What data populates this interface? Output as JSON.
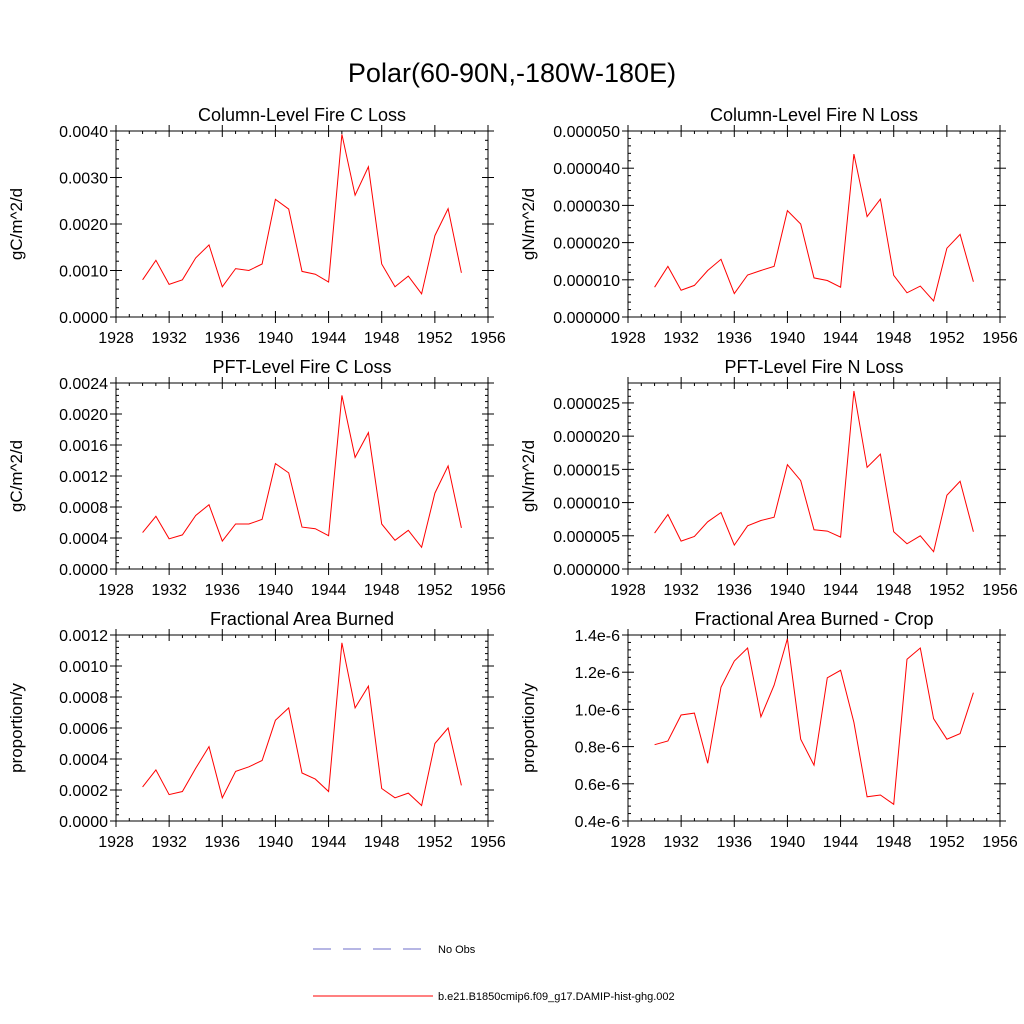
{
  "figure": {
    "title": "Polar(60-90N,-180W-180E)"
  },
  "legend": {
    "items": [
      {
        "label": "No Obs",
        "color": "#6e6ec8",
        "style": "dashed"
      },
      {
        "label": "b.e21.B1850cmip6.f09_g17.DAMIP-hist-ghg.002",
        "color": "#ff0000",
        "style": "solid"
      }
    ]
  },
  "chart_data": [
    {
      "type": "line",
      "title": "Column-Level Fire C Loss",
      "xlabel": "",
      "ylabel": "gC/m^2/d",
      "xlim": [
        1928,
        1956
      ],
      "ylim": [
        0,
        0.004
      ],
      "xticks": [
        1928,
        1932,
        1936,
        1940,
        1944,
        1948,
        1952,
        1956
      ],
      "xtick_labels": [
        "1928",
        "1932",
        "1936",
        "1940",
        "1944",
        "1948",
        "1952",
        "1956"
      ],
      "yticks": [
        0,
        0.001,
        0.002,
        0.003,
        0.004
      ],
      "ytick_labels": [
        "0.0000",
        "0.0010",
        "0.0020",
        "0.0030",
        "0.0040"
      ],
      "x": [
        1930,
        1931,
        1932,
        1933,
        1934,
        1935,
        1936,
        1937,
        1938,
        1939,
        1940,
        1941,
        1942,
        1943,
        1944,
        1945,
        1946,
        1947,
        1948,
        1949,
        1950,
        1951,
        1952,
        1953,
        1954
      ],
      "series": [
        {
          "color": "#ff0000",
          "values": [
            0.0008,
            0.00122,
            0.0007,
            0.0008,
            0.00127,
            0.00155,
            0.00065,
            0.00104,
            0.001,
            0.00114,
            0.00253,
            0.00232,
            0.00098,
            0.00092,
            0.00075,
            0.00393,
            0.00262,
            0.00323,
            0.00114,
            0.00065,
            0.00088,
            0.0005,
            0.00175,
            0.00233,
            0.00095
          ]
        }
      ]
    },
    {
      "type": "line",
      "title": "Column-Level Fire N Loss",
      "xlabel": "",
      "ylabel": "gN/m^2/d",
      "xlim": [
        1928,
        1956
      ],
      "ylim": [
        0,
        5e-05
      ],
      "xticks": [
        1928,
        1932,
        1936,
        1940,
        1944,
        1948,
        1952,
        1956
      ],
      "xtick_labels": [
        "1928",
        "1932",
        "1936",
        "1940",
        "1944",
        "1948",
        "1952",
        "1956"
      ],
      "yticks": [
        0,
        1e-05,
        2e-05,
        3e-05,
        4e-05,
        5e-05
      ],
      "ytick_labels": [
        "0.000000",
        "0.000010",
        "0.000020",
        "0.000030",
        "0.000040",
        "0.000050"
      ],
      "x": [
        1930,
        1931,
        1932,
        1933,
        1934,
        1935,
        1936,
        1937,
        1938,
        1939,
        1940,
        1941,
        1942,
        1943,
        1944,
        1945,
        1946,
        1947,
        1948,
        1949,
        1950,
        1951,
        1952,
        1953,
        1954
      ],
      "series": [
        {
          "color": "#ff0000",
          "values": [
            8e-06,
            1.36e-05,
            7.2e-06,
            8.5e-06,
            1.25e-05,
            1.55e-05,
            6.3e-06,
            1.13e-05,
            1.25e-05,
            1.36e-05,
            2.86e-05,
            2.5e-05,
            1.05e-05,
            9.8e-06,
            8e-06,
            4.38e-05,
            2.7e-05,
            3.17e-05,
            1.12e-05,
            6.5e-06,
            8.3e-06,
            4.3e-06,
            1.85e-05,
            2.22e-05,
            9.5e-06
          ]
        }
      ]
    },
    {
      "type": "line",
      "title": "PFT-Level Fire C Loss",
      "xlabel": "",
      "ylabel": "gC/m^2/d",
      "xlim": [
        1928,
        1956
      ],
      "ylim": [
        0,
        0.0024
      ],
      "xticks": [
        1928,
        1932,
        1936,
        1940,
        1944,
        1948,
        1952,
        1956
      ],
      "xtick_labels": [
        "1928",
        "1932",
        "1936",
        "1940",
        "1944",
        "1948",
        "1952",
        "1956"
      ],
      "yticks": [
        0,
        0.0004,
        0.0008,
        0.0012,
        0.0016,
        0.002,
        0.0024
      ],
      "ytick_labels": [
        "0.0000",
        "0.0004",
        "0.0008",
        "0.0012",
        "0.0016",
        "0.0020",
        "0.0024"
      ],
      "x": [
        1930,
        1931,
        1932,
        1933,
        1934,
        1935,
        1936,
        1937,
        1938,
        1939,
        1940,
        1941,
        1942,
        1943,
        1944,
        1945,
        1946,
        1947,
        1948,
        1949,
        1950,
        1951,
        1952,
        1953,
        1954
      ],
      "series": [
        {
          "color": "#ff0000",
          "values": [
            0.00047,
            0.00068,
            0.00039,
            0.00044,
            0.00069,
            0.00083,
            0.00036,
            0.00058,
            0.00058,
            0.00064,
            0.00136,
            0.00124,
            0.00054,
            0.00052,
            0.00043,
            0.00224,
            0.00144,
            0.00176,
            0.00058,
            0.00037,
            0.0005,
            0.00028,
            0.00098,
            0.00133,
            0.00053
          ]
        }
      ]
    },
    {
      "type": "line",
      "title": "PFT-Level Fire N Loss",
      "xlabel": "",
      "ylabel": "gN/m^2/d",
      "xlim": [
        1928,
        1956
      ],
      "ylim": [
        0,
        2.8e-05
      ],
      "xticks": [
        1928,
        1932,
        1936,
        1940,
        1944,
        1948,
        1952,
        1956
      ],
      "xtick_labels": [
        "1928",
        "1932",
        "1936",
        "1940",
        "1944",
        "1948",
        "1952",
        "1956"
      ],
      "yticks": [
        0,
        5e-06,
        1e-05,
        1.5e-05,
        2e-05,
        2.5e-05
      ],
      "ytick_labels": [
        "0.000000",
        "0.000005",
        "0.000010",
        "0.000015",
        "0.000020",
        "0.000025"
      ],
      "x": [
        1930,
        1931,
        1932,
        1933,
        1934,
        1935,
        1936,
        1937,
        1938,
        1939,
        1940,
        1941,
        1942,
        1943,
        1944,
        1945,
        1946,
        1947,
        1948,
        1949,
        1950,
        1951,
        1952,
        1953,
        1954
      ],
      "series": [
        {
          "color": "#ff0000",
          "values": [
            5.4e-06,
            8.2e-06,
            4.2e-06,
            4.9e-06,
            7.1e-06,
            8.5e-06,
            3.6e-06,
            6.5e-06,
            7.3e-06,
            7.8e-06,
            1.57e-05,
            1.33e-05,
            5.9e-06,
            5.7e-06,
            4.8e-06,
            2.68e-05,
            1.53e-05,
            1.73e-05,
            5.6e-06,
            3.8e-06,
            5e-06,
            2.6e-06,
            1.11e-05,
            1.32e-05,
            5.6e-06
          ]
        }
      ]
    },
    {
      "type": "line",
      "title": "Fractional Area Burned",
      "xlabel": "",
      "ylabel": "proportion/y",
      "xlim": [
        1928,
        1956
      ],
      "ylim": [
        0,
        0.0012
      ],
      "xticks": [
        1928,
        1932,
        1936,
        1940,
        1944,
        1948,
        1952,
        1956
      ],
      "xtick_labels": [
        "1928",
        "1932",
        "1936",
        "1940",
        "1944",
        "1948",
        "1952",
        "1956"
      ],
      "yticks": [
        0,
        0.0002,
        0.0004,
        0.0006,
        0.0008,
        0.001,
        0.0012
      ],
      "ytick_labels": [
        "0.0000",
        "0.0002",
        "0.0004",
        "0.0006",
        "0.0008",
        "0.0010",
        "0.0012"
      ],
      "x": [
        1930,
        1931,
        1932,
        1933,
        1934,
        1935,
        1936,
        1937,
        1938,
        1939,
        1940,
        1941,
        1942,
        1943,
        1944,
        1945,
        1946,
        1947,
        1948,
        1949,
        1950,
        1951,
        1952,
        1953,
        1954
      ],
      "series": [
        {
          "color": "#ff0000",
          "values": [
            0.00022,
            0.00033,
            0.00017,
            0.00019,
            0.00034,
            0.00048,
            0.00015,
            0.00032,
            0.00035,
            0.00039,
            0.00065,
            0.00073,
            0.00031,
            0.00027,
            0.00019,
            0.00115,
            0.00073,
            0.00087,
            0.00021,
            0.00015,
            0.00018,
            0.0001,
            0.0005,
            0.0006,
            0.00023
          ]
        }
      ]
    },
    {
      "type": "line",
      "title": "Fractional Area Burned - Crop",
      "xlabel": "",
      "ylabel": "proportion/y",
      "xlim": [
        1928,
        1956
      ],
      "ylim": [
        4e-07,
        1.4e-06
      ],
      "xticks": [
        1928,
        1932,
        1936,
        1940,
        1944,
        1948,
        1952,
        1956
      ],
      "xtick_labels": [
        "1928",
        "1932",
        "1936",
        "1940",
        "1944",
        "1948",
        "1952",
        "1956"
      ],
      "yticks": [
        4e-07,
        6e-07,
        8e-07,
        1e-06,
        1.2e-06,
        1.4e-06
      ],
      "ytick_labels": [
        "0.4e-6",
        "0.6e-6",
        "0.8e-6",
        "1.0e-6",
        "1.2e-6",
        "1.4e-6"
      ],
      "x": [
        1930,
        1931,
        1932,
        1933,
        1934,
        1935,
        1936,
        1937,
        1938,
        1939,
        1940,
        1941,
        1942,
        1943,
        1944,
        1945,
        1946,
        1947,
        1948,
        1949,
        1950,
        1951,
        1952,
        1953,
        1954
      ],
      "series": [
        {
          "color": "#ff0000",
          "values": [
            8.1e-07,
            8.3e-07,
            9.7e-07,
            9.8e-07,
            7.1e-07,
            1.12e-06,
            1.26e-06,
            1.33e-06,
            9.6e-07,
            1.13e-06,
            1.38e-06,
            8.4e-07,
            7e-07,
            1.17e-06,
            1.21e-06,
            9.3e-07,
            5.3e-07,
            5.4e-07,
            4.9e-07,
            1.27e-06,
            1.33e-06,
            9.5e-07,
            8.4e-07,
            8.7e-07,
            1.09e-06
          ]
        }
      ]
    }
  ]
}
